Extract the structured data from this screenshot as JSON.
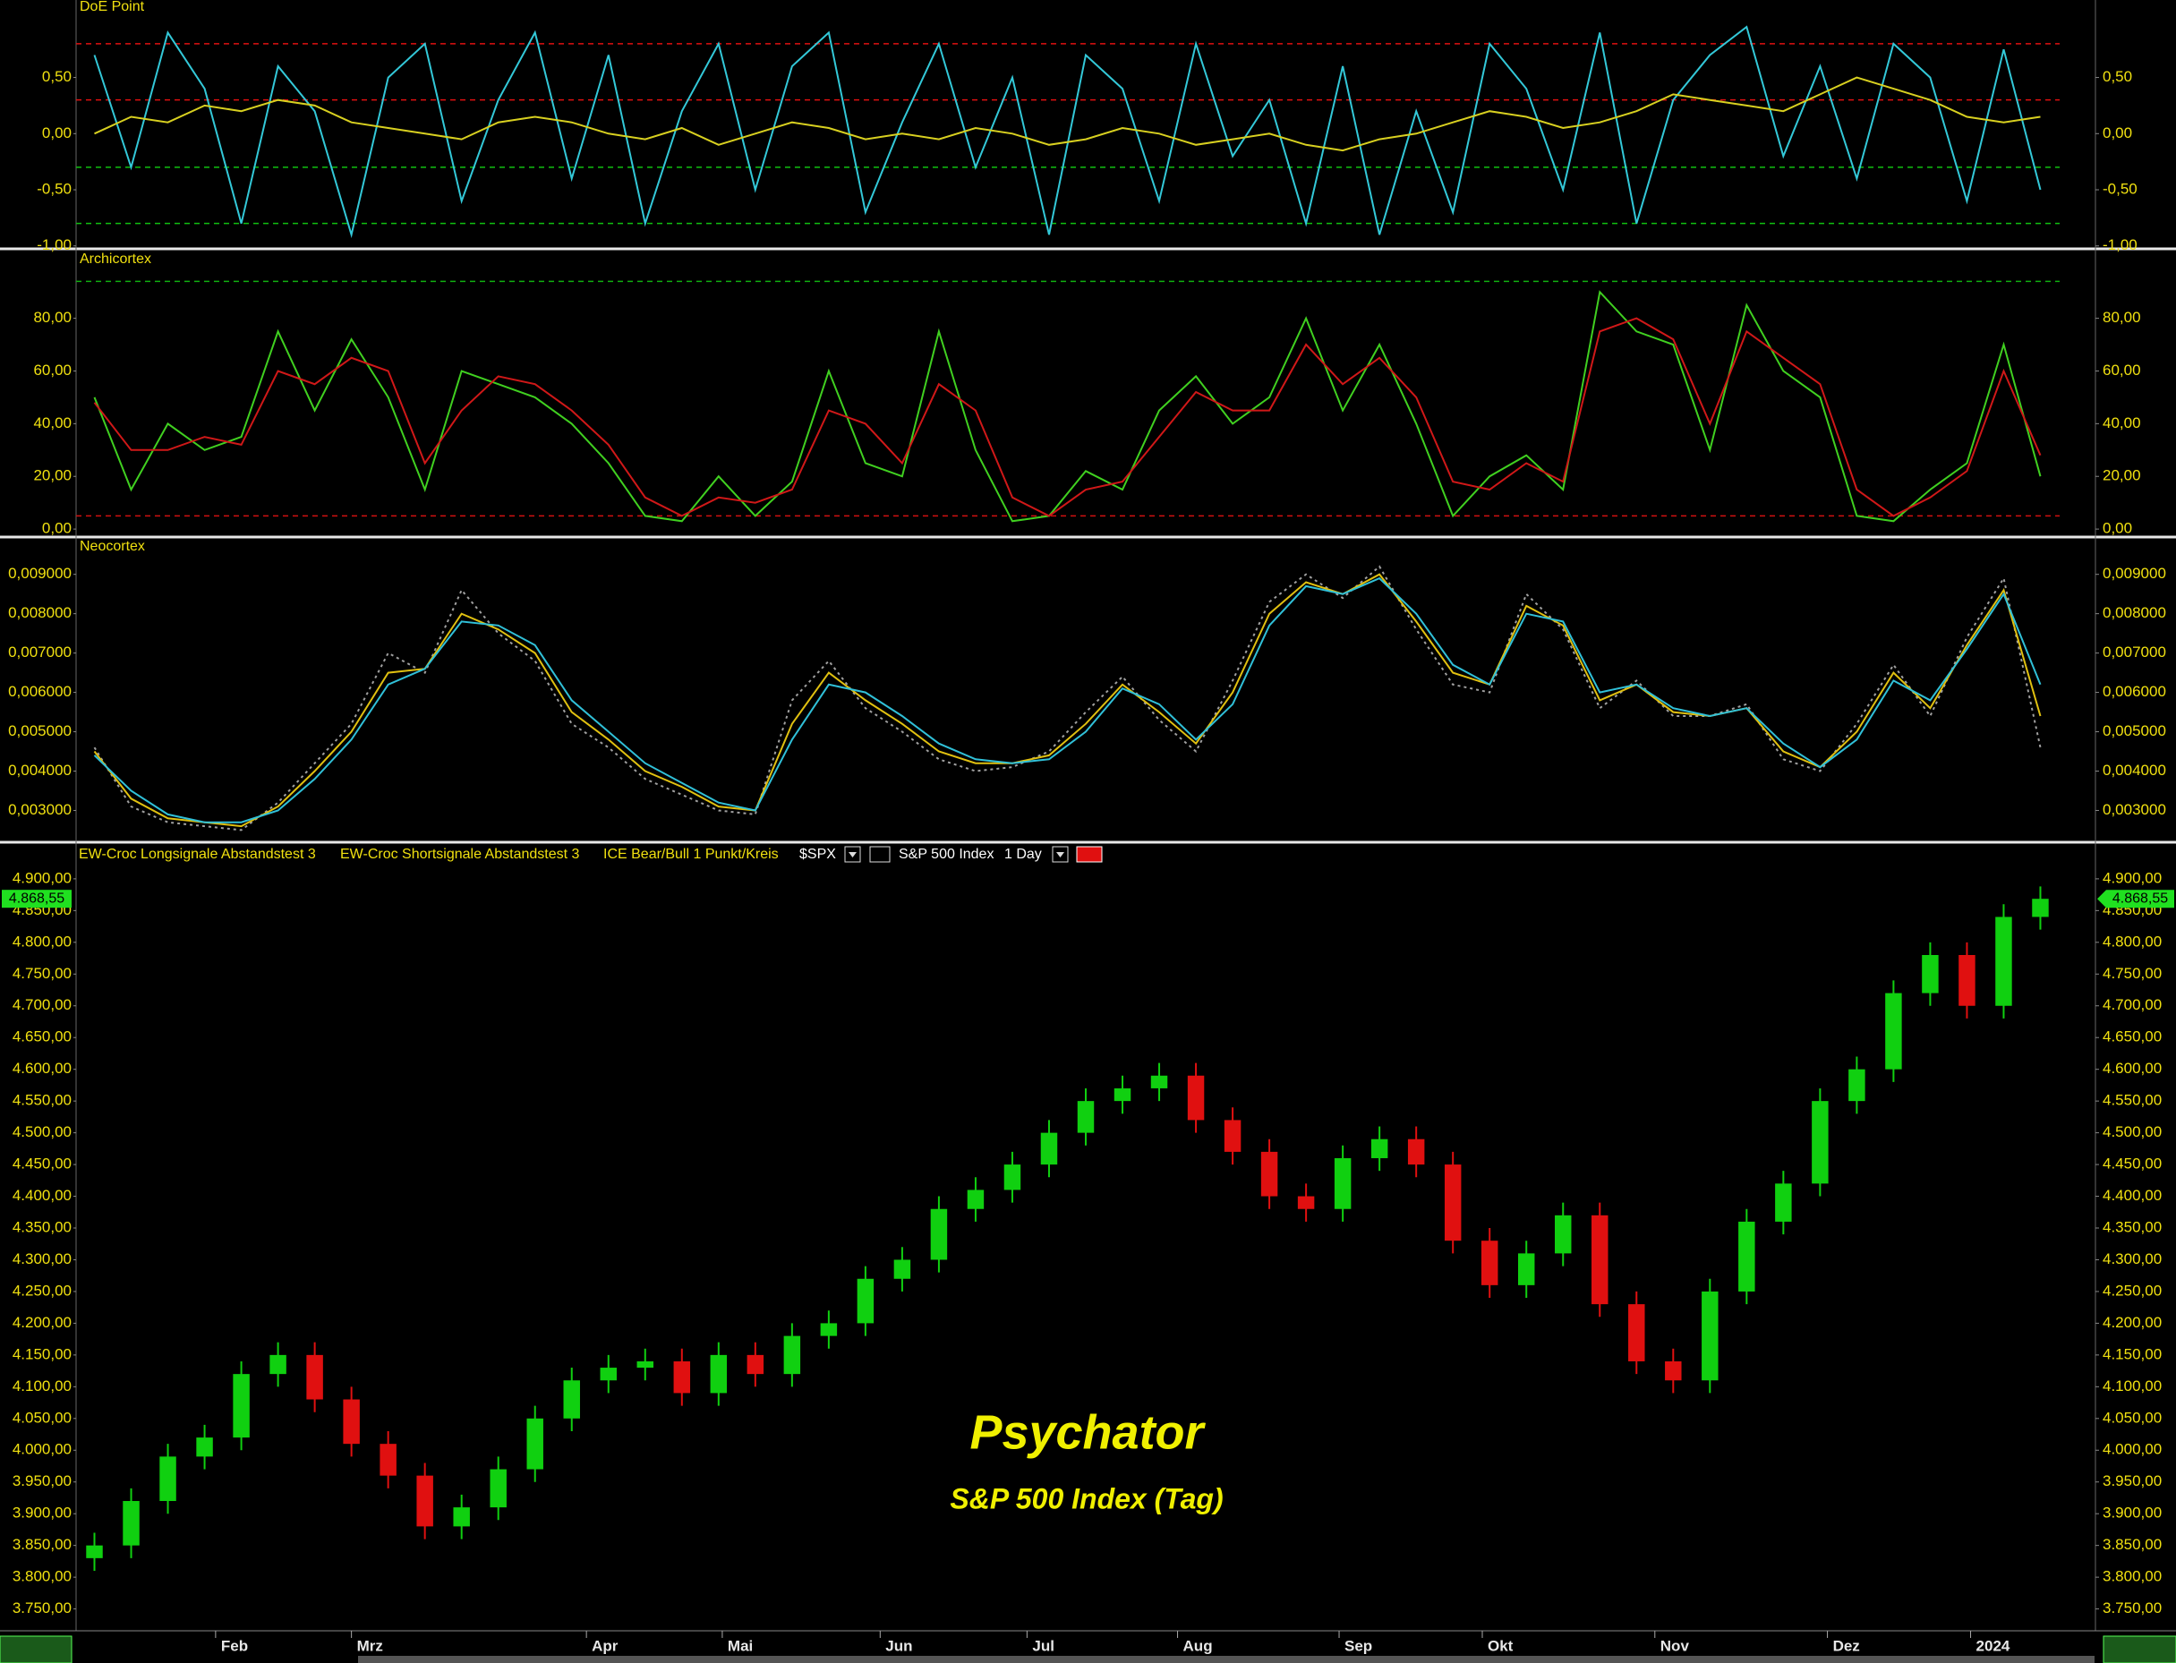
{
  "chart_data": [
    {
      "type": "line",
      "title": "DoE Point",
      "ylim": [
        -1.01,
        1.19
      ],
      "yticks": [
        {
          "value": 0.5,
          "label": "0,50"
        },
        {
          "value": 0,
          "label": "0,00"
        },
        {
          "value": -0.5,
          "label": "-0,50"
        },
        {
          "value": -1,
          "label": "-1,00"
        }
      ],
      "levels": [
        {
          "value": 0.8,
          "color": "#e01010"
        },
        {
          "value": 0.3,
          "color": "#e01010"
        },
        {
          "value": -0.3,
          "color": "#10c010"
        },
        {
          "value": -0.8,
          "color": "#10c010"
        }
      ],
      "series": [
        {
          "color": "#33c8d8",
          "values": [
            0.7,
            -0.3,
            0.9,
            0.4,
            -0.8,
            0.6,
            0.2,
            -0.9,
            0.5,
            0.8,
            -0.6,
            0.3,
            0.9,
            -0.4,
            0.7,
            -0.8,
            0.2,
            0.8,
            -0.5,
            0.6,
            0.9,
            -0.7,
            0.1,
            0.8,
            -0.3,
            0.5,
            -0.9,
            0.7,
            0.4,
            -0.6,
            0.8,
            -0.2,
            0.3,
            -0.8,
            0.6,
            -0.9,
            0.2,
            -0.7,
            0.8,
            0.4,
            -0.5,
            0.9,
            -0.8,
            0.3,
            0.7,
            0.95,
            -0.2,
            0.6,
            -0.4,
            0.8,
            0.5,
            -0.6,
            0.75,
            -0.5
          ]
        },
        {
          "color": "#d8d020",
          "values": [
            0,
            0.15,
            0.1,
            0.25,
            0.2,
            0.3,
            0.25,
            0.1,
            0.05,
            0,
            -0.05,
            0.1,
            0.15,
            0.1,
            0,
            -0.05,
            0.05,
            -0.1,
            0,
            0.1,
            0.05,
            -0.05,
            0,
            -0.05,
            0.05,
            0,
            -0.1,
            -0.05,
            0.05,
            0,
            -0.1,
            -0.05,
            0,
            -0.1,
            -0.15,
            -0.05,
            0,
            0.1,
            0.2,
            0.15,
            0.05,
            0.1,
            0.2,
            0.35,
            0.3,
            0.25,
            0.2,
            0.35,
            0.5,
            0.4,
            0.3,
            0.15,
            0.1,
            0.15
          ]
        }
      ]
    },
    {
      "type": "line",
      "title": "Archicortex",
      "ylim": [
        -2,
        105
      ],
      "yticks": [
        {
          "value": 0,
          "label": "0,00"
        },
        {
          "value": 20,
          "label": "20,00"
        },
        {
          "value": 40,
          "label": "40,00"
        },
        {
          "value": 60,
          "label": "60,00"
        },
        {
          "value": 80,
          "label": "80,00"
        }
      ],
      "levels": [
        {
          "value": 94,
          "color": "#10b010"
        },
        {
          "value": 5,
          "color": "#d01010"
        }
      ],
      "series": [
        {
          "color": "#40d020",
          "values": [
            50,
            15,
            40,
            30,
            35,
            75,
            45,
            72,
            50,
            15,
            60,
            55,
            50,
            40,
            25,
            5,
            3,
            20,
            5,
            18,
            60,
            25,
            20,
            75,
            30,
            3,
            5,
            22,
            15,
            45,
            58,
            40,
            50,
            80,
            45,
            70,
            40,
            5,
            20,
            28,
            15,
            90,
            75,
            70,
            30,
            85,
            60,
            50,
            5,
            3,
            15,
            25,
            70,
            20
          ]
        },
        {
          "color": "#d01818",
          "values": [
            48,
            30,
            30,
            35,
            32,
            60,
            55,
            65,
            60,
            25,
            45,
            58,
            55,
            45,
            32,
            12,
            5,
            12,
            10,
            15,
            45,
            40,
            25,
            55,
            45,
            12,
            5,
            15,
            18,
            35,
            52,
            45,
            45,
            70,
            55,
            65,
            50,
            18,
            15,
            25,
            18,
            75,
            80,
            72,
            40,
            75,
            65,
            55,
            15,
            5,
            12,
            22,
            60,
            28
          ]
        }
      ]
    },
    {
      "type": "line",
      "title": "Neocortex",
      "ylim": [
        0.00226,
        0.00988
      ],
      "yticks": [
        {
          "value": 0.003,
          "label": "0,003000"
        },
        {
          "value": 0.004,
          "label": "0,004000"
        },
        {
          "value": 0.005,
          "label": "0,005000"
        },
        {
          "value": 0.006,
          "label": "0,006000"
        },
        {
          "value": 0.007,
          "label": "0,007000"
        },
        {
          "value": 0.008,
          "label": "0,008000"
        },
        {
          "value": 0.009,
          "label": "0,009000"
        }
      ],
      "series": [
        {
          "color": "#a0a0a0",
          "style": "dotted",
          "values": [
            0.0046,
            0.0031,
            0.0027,
            0.0026,
            0.0025,
            0.0032,
            0.0042,
            0.0052,
            0.007,
            0.0065,
            0.0086,
            0.0075,
            0.0068,
            0.0052,
            0.0046,
            0.0038,
            0.0034,
            0.003,
            0.0029,
            0.0058,
            0.0068,
            0.0056,
            0.005,
            0.0043,
            0.004,
            0.0041,
            0.0045,
            0.0055,
            0.0064,
            0.0053,
            0.0045,
            0.0063,
            0.0083,
            0.009,
            0.0084,
            0.0092,
            0.0076,
            0.0062,
            0.006,
            0.0085,
            0.0076,
            0.0056,
            0.0063,
            0.0054,
            0.0054,
            0.0057,
            0.0043,
            0.004,
            0.0052,
            0.0067,
            0.0054,
            0.0074,
            0.0089,
            0.0046
          ]
        },
        {
          "color": "#e0c010",
          "values": [
            0.0045,
            0.0033,
            0.0028,
            0.0027,
            0.0026,
            0.0031,
            0.004,
            0.005,
            0.0065,
            0.0066,
            0.008,
            0.0076,
            0.007,
            0.0055,
            0.0048,
            0.004,
            0.0036,
            0.0031,
            0.003,
            0.0052,
            0.0065,
            0.0058,
            0.0052,
            0.0045,
            0.0042,
            0.0042,
            0.0044,
            0.0052,
            0.0062,
            0.0055,
            0.0047,
            0.006,
            0.008,
            0.0088,
            0.0085,
            0.009,
            0.0078,
            0.0065,
            0.0062,
            0.0082,
            0.0077,
            0.0058,
            0.0062,
            0.0055,
            0.0054,
            0.0056,
            0.0045,
            0.0041,
            0.005,
            0.0065,
            0.0056,
            0.0072,
            0.0086,
            0.0054
          ]
        },
        {
          "color": "#30c0d8",
          "values": [
            0.0044,
            0.0035,
            0.0029,
            0.0027,
            0.0027,
            0.003,
            0.0038,
            0.0048,
            0.0062,
            0.0066,
            0.0078,
            0.0077,
            0.0072,
            0.0058,
            0.005,
            0.0042,
            0.0037,
            0.0032,
            0.003,
            0.0048,
            0.0062,
            0.006,
            0.0054,
            0.0047,
            0.0043,
            0.0042,
            0.0043,
            0.005,
            0.0061,
            0.0057,
            0.0048,
            0.0057,
            0.0077,
            0.0087,
            0.0085,
            0.0089,
            0.008,
            0.0067,
            0.0062,
            0.008,
            0.0078,
            0.006,
            0.0062,
            0.0056,
            0.0054,
            0.0056,
            0.0047,
            0.0041,
            0.0048,
            0.0063,
            0.0058,
            0.0071,
            0.0085,
            0.0062
          ]
        }
      ]
    },
    {
      "type": "candlestick",
      "ylim": [
        3717,
        4952
      ],
      "xlim": [
        0,
        55
      ],
      "xticks": [
        {
          "value": 3.8,
          "label": "Feb"
        },
        {
          "value": 7.5,
          "label": "Mrz"
        },
        {
          "value": 13.9,
          "label": "Apr"
        },
        {
          "value": 17.6,
          "label": "Mai"
        },
        {
          "value": 21.9,
          "label": "Jun"
        },
        {
          "value": 25.9,
          "label": "Jul"
        },
        {
          "value": 30.0,
          "label": "Aug"
        },
        {
          "value": 34.4,
          "label": "Sep"
        },
        {
          "value": 38.3,
          "label": "Okt"
        },
        {
          "value": 43.0,
          "label": "Nov"
        },
        {
          "value": 47.7,
          "label": "Dez"
        },
        {
          "value": 51.6,
          "label": "2024"
        }
      ],
      "yticks": [
        {
          "value": 3750,
          "label": "3.750,00"
        },
        {
          "value": 3800,
          "label": "3.800,00"
        },
        {
          "value": 3850,
          "label": "3.850,00"
        },
        {
          "value": 3900,
          "label": "3.900,00"
        },
        {
          "value": 3950,
          "label": "3.950,00"
        },
        {
          "value": 4000,
          "label": "4.000,00"
        },
        {
          "value": 4050,
          "label": "4.050,00"
        },
        {
          "value": 4100,
          "label": "4.100,00"
        },
        {
          "value": 4150,
          "label": "4.150,00"
        },
        {
          "value": 4200,
          "label": "4.200,00"
        },
        {
          "value": 4250,
          "label": "4.250,00"
        },
        {
          "value": 4300,
          "label": "4.300,00"
        },
        {
          "value": 4350,
          "label": "4.350,00"
        },
        {
          "value": 4400,
          "label": "4.400,00"
        },
        {
          "value": 4450,
          "label": "4.450,00"
        },
        {
          "value": 4500,
          "label": "4.500,00"
        },
        {
          "value": 4550,
          "label": "4.550,00"
        },
        {
          "value": 4600,
          "label": "4.600,00"
        },
        {
          "value": 4650,
          "label": "4.650,00"
        },
        {
          "value": 4700,
          "label": "4.700,00"
        },
        {
          "value": 4750,
          "label": "4.750,00"
        },
        {
          "value": 4800,
          "label": "4.800,00"
        },
        {
          "value": 4850,
          "label": "4.850,00"
        },
        {
          "value": 4900,
          "label": "4.900,00"
        }
      ],
      "up_color": "#10d010",
      "down_color": "#e01010",
      "open": [
        3830,
        3850,
        3920,
        3990,
        4020,
        4120,
        4150,
        4080,
        4010,
        3960,
        3880,
        3910,
        3970,
        4050,
        4110,
        4130,
        4140,
        4090,
        4150,
        4120,
        4180,
        4200,
        4270,
        4300,
        4380,
        4410,
        4450,
        4500,
        4550,
        4570,
        4590,
        4520,
        4470,
        4400,
        4380,
        4460,
        4490,
        4450,
        4330,
        4260,
        4310,
        4370,
        4230,
        4140,
        4110,
        4250,
        4360,
        4420,
        4550,
        4600,
        4720,
        4780,
        4700,
        4840
      ],
      "high": [
        3870,
        3940,
        4010,
        4040,
        4140,
        4170,
        4170,
        4100,
        4030,
        3980,
        3930,
        3990,
        4070,
        4130,
        4150,
        4160,
        4160,
        4170,
        4170,
        4200,
        4220,
        4290,
        4320,
        4400,
        4430,
        4470,
        4520,
        4570,
        4590,
        4610,
        4610,
        4540,
        4490,
        4420,
        4480,
        4510,
        4510,
        4470,
        4350,
        4330,
        4390,
        4390,
        4250,
        4160,
        4270,
        4380,
        4440,
        4570,
        4620,
        4740,
        4800,
        4800,
        4860,
        4888
      ],
      "low": [
        3810,
        3830,
        3900,
        3970,
        4000,
        4100,
        4060,
        3990,
        3940,
        3860,
        3860,
        3890,
        3950,
        4030,
        4090,
        4110,
        4070,
        4070,
        4100,
        4100,
        4160,
        4180,
        4250,
        4280,
        4360,
        4390,
        4430,
        4480,
        4530,
        4550,
        4500,
        4450,
        4380,
        4360,
        4360,
        4440,
        4430,
        4310,
        4240,
        4240,
        4290,
        4210,
        4120,
        4090,
        4090,
        4230,
        4340,
        4400,
        4530,
        4580,
        4700,
        4680,
        4680,
        4820
      ],
      "close": [
        3850,
        3920,
        3990,
        4020,
        4120,
        4150,
        4080,
        4010,
        3960,
        3880,
        3910,
        3970,
        4050,
        4110,
        4130,
        4140,
        4090,
        4150,
        4120,
        4180,
        4200,
        4270,
        4300,
        4380,
        4410,
        4450,
        4500,
        4550,
        4570,
        4590,
        4520,
        4470,
        4400,
        4380,
        4460,
        4490,
        4450,
        4330,
        4260,
        4310,
        4370,
        4230,
        4140,
        4110,
        4250,
        4360,
        4420,
        4550,
        4600,
        4720,
        4780,
        4700,
        4840,
        4868.55
      ],
      "last_price": {
        "value": 4868.55,
        "label": "4.868,55"
      }
    }
  ],
  "toolbar": {
    "items": [
      "EW-Croc Longsignale Abstandstest 3",
      "EW-Croc Shortsignale Abstandstest 3",
      "ICE Bear/Bull 1 Punkt/Kreis"
    ],
    "symbol": "$SPX",
    "name": "S&P 500 Index",
    "interval": "1 Day"
  },
  "watermark": {
    "title": "Psychator",
    "subtitle": "S&P 500 Index (Tag)"
  }
}
